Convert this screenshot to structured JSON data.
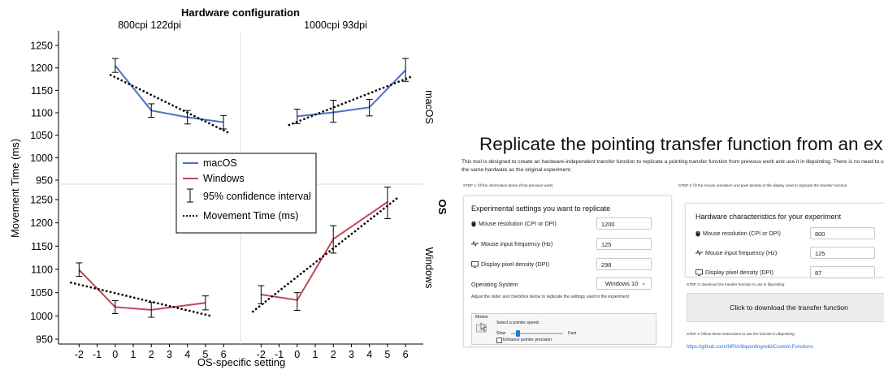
{
  "figure": {
    "title": "Hardware configuration",
    "config_left": "800cpi 122dpi",
    "config_right": "1000cpi 93dpi",
    "ylabel": "Movement Time (ms)",
    "xlabel": "OS-specific setting",
    "facet_label": "OS",
    "row_labels": [
      "macOS",
      "Windows"
    ],
    "y_ticks": [
      950,
      1000,
      1050,
      1100,
      1150,
      1200,
      1250
    ],
    "x_ticks_left": [
      -2,
      -1,
      0,
      1,
      2,
      3,
      4,
      5,
      6
    ],
    "x_ticks_right": [
      -2,
      -1,
      0,
      1,
      2,
      3,
      4,
      5,
      6
    ],
    "legend": {
      "macos": "macOS",
      "windows": "Windows",
      "ci": "95% confidence interval",
      "fit": "Movement Time (ms)"
    },
    "colors": {
      "macos": "#4a72c4",
      "windows": "#c0485a",
      "fit": "#000000",
      "ci": "#000000",
      "gridline": "#d9d9d9"
    }
  },
  "chart_data": [
    {
      "type": "line",
      "panel": "macOS / 800cpi 122dpi",
      "x": [
        0,
        2,
        4,
        6
      ],
      "series": [
        {
          "name": "macOS",
          "values": [
            1205,
            1105,
            1090,
            1079
          ],
          "ci_low": [
            1190,
            1090,
            1075,
            1064
          ],
          "ci_high": [
            1221,
            1120,
            1105,
            1094
          ]
        },
        {
          "name": "Movement Time (ms)",
          "x": [
            -0.3,
            6.3
          ],
          "values": [
            1185,
            1055
          ]
        }
      ],
      "ylim": [
        950,
        1280
      ]
    },
    {
      "type": "line",
      "panel": "macOS / 1000cpi 93dpi",
      "x": [
        -2,
        0,
        2,
        4,
        6
      ],
      "series": [
        {
          "name": "macOS",
          "x": [
            0,
            2,
            4,
            6
          ],
          "values": [
            1092,
            1101,
            1112,
            1195
          ],
          "ci_low": [
            1076,
            1079,
            1093,
            1170
          ],
          "ci_high": [
            1108,
            1128,
            1130,
            1221
          ]
        },
        {
          "name": "Movement Time (ms)",
          "x": [
            -0.5,
            6.3
          ],
          "values": [
            1072,
            1180
          ]
        }
      ],
      "ylim": [
        950,
        1280
      ]
    },
    {
      "type": "line",
      "panel": "Windows / 800cpi 122dpi",
      "x": [
        -2,
        0,
        2,
        5
      ],
      "series": [
        {
          "name": "Windows",
          "values": [
            1099,
            1019,
            1013,
            1028
          ],
          "ci_low": [
            1085,
            1005,
            997,
            1013
          ],
          "ci_high": [
            1114,
            1033,
            1029,
            1043
          ]
        },
        {
          "name": "Movement Time (ms)",
          "x": [
            -2.5,
            5.3
          ],
          "values": [
            1072,
            1000
          ]
        }
      ],
      "ylim": [
        950,
        1280
      ]
    },
    {
      "type": "line",
      "panel": "Windows / 1000cpi 93dpi",
      "x": [
        -2,
        0,
        2,
        5
      ],
      "series": [
        {
          "name": "Windows",
          "values": [
            1046,
            1034,
            1165,
            1245
          ],
          "ci_low": [
            1026,
            1012,
            1135,
            1209
          ],
          "ci_high": [
            1065,
            1050,
            1194,
            1277
          ]
        },
        {
          "name": "Movement Time (ms)",
          "x": [
            -2.5,
            5.6
          ],
          "values": [
            1008,
            1255
          ]
        }
      ],
      "ylim": [
        950,
        1280
      ]
    }
  ],
  "tool": {
    "title": "Replicate the pointing transfer function from an experiment",
    "intro": "This tool is designed to create an hardware-independent transfer function to replicate a pointing transfer function from previous work and use it in libpointing. There is no need to use the same hardware as the original experiment.",
    "step1": "STEP 1: fill the information below (from previous work)",
    "step2": "STEP 2: fill the mouse resolution and pixel density of the display used to replicate the transfer function",
    "step3": "STEP 3: download the transfer function to use in libpointing",
    "step4": "STEP 4: follow these instructions to use the function in libpointing",
    "experimental": {
      "title": "Experimental settings you want to replicate",
      "mouse_resolution_label": "Mouse resolution (CPI or DPI)",
      "mouse_resolution_value": "1200",
      "input_frequency_label": "Mouse input frequency (Hz)",
      "input_frequency_value": "125",
      "pixel_density_label": "Display pixel density (DPI)",
      "pixel_density_value": "298",
      "os_label": "Operating System",
      "os_value": "Windows 10",
      "note": "Adjust the slider and checkbox below to replicate the settings used in the experiment",
      "motion_legend": "Motion",
      "pointer_speed_label": "Select a pointer speed:",
      "slow": "Slow",
      "fast": "Fast",
      "pointer_speed_fraction": 0.1,
      "precision_label": "Enhance pointer precision",
      "precision_checked": false
    },
    "hardware": {
      "title": "Hardware characteristics for your experiment",
      "mouse_resolution_label": "Mouse resolution (CPI or DPI)",
      "mouse_resolution_value": "800",
      "input_frequency_label": "Mouse input frequency (Hz)",
      "input_frequency_value": "125",
      "pixel_density_label": "Display pixel density (DPI)",
      "pixel_density_value": "87"
    },
    "download_label": "Click to download the transfer function",
    "link": "https://github.com/INRIA/libpointing/wiki/Custom-Functions",
    "colors": {
      "slider": "#1f7ae0",
      "link": "#2a6fd6"
    }
  }
}
